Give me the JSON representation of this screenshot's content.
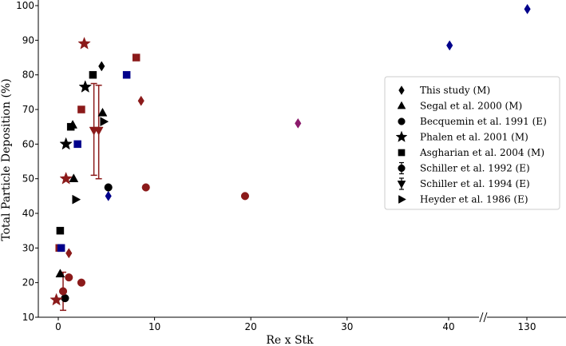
{
  "chart_data": {
    "type": "scatter",
    "title": "",
    "xlabel": "Re x Stk",
    "ylabel": "Total Particle Deposition (%)",
    "ylim": [
      10,
      100
    ],
    "yticks": [
      "10",
      "20",
      "30",
      "40",
      "50",
      "60",
      "70",
      "80",
      "90",
      "100"
    ],
    "x_segments": [
      {
        "range": [
          -1,
          30
        ],
        "ticks": [
          [
            "0",
            0
          ],
          [
            "10",
            10
          ],
          [
            "20",
            20
          ],
          [
            "30",
            30
          ]
        ]
      },
      {
        "range": [
          39,
          43
        ],
        "ticks": [
          [
            "40",
            40
          ]
        ]
      },
      {
        "range": [
          128,
          132
        ],
        "ticks": [
          [
            "130",
            130
          ]
        ]
      }
    ],
    "axis_break": "between 30 and 40",
    "grid": false,
    "legend_position": "center-right",
    "colors": {
      "black": "#000000",
      "dark_red": "#8b1a1a",
      "navy": "#00008b",
      "purple": "#8b1a6b"
    },
    "series": [
      {
        "name": "This study",
        "tag": "(M)",
        "marker": "diamond",
        "points": [
          {
            "x": 4.5,
            "y": 82.5,
            "color": "black"
          },
          {
            "x": 8.6,
            "y": 72.5,
            "color": "dark_red"
          },
          {
            "x": 1.1,
            "y": 28.5,
            "color": "dark_red"
          },
          {
            "x": 5.2,
            "y": 45,
            "color": "navy"
          },
          {
            "x": 24.9,
            "y": 66,
            "color": "purple"
          },
          {
            "x": 40.3,
            "y": 88.5,
            "color": "navy"
          },
          {
            "x": 130.2,
            "y": 99,
            "color": "navy"
          }
        ]
      },
      {
        "name": "Segal et al. 2000",
        "tag": "(M)",
        "marker": "triangle",
        "points": [
          {
            "x": 4.6,
            "y": 69,
            "color": "black"
          },
          {
            "x": 1.6,
            "y": 50,
            "color": "black"
          },
          {
            "x": 1.5,
            "y": 65.5,
            "color": "black"
          },
          {
            "x": 0.2,
            "y": 22.5,
            "color": "black"
          }
        ]
      },
      {
        "name": "Becquemin et al. 1991",
        "tag": "(E)",
        "marker": "circle",
        "points": [
          {
            "x": 5.2,
            "y": 47.5,
            "color": "black"
          },
          {
            "x": 9.1,
            "y": 47.5,
            "color": "dark_red"
          },
          {
            "x": 19.4,
            "y": 45,
            "color": "dark_red"
          },
          {
            "x": 1.1,
            "y": 21.5,
            "color": "dark_red"
          },
          {
            "x": 2.4,
            "y": 20,
            "color": "dark_red"
          },
          {
            "x": 0.7,
            "y": 15.5,
            "color": "black"
          }
        ]
      },
      {
        "name": "Phalen et al. 2001",
        "tag": "(M)",
        "marker": "star",
        "points": [
          {
            "x": 2.7,
            "y": 89,
            "color": "dark_red"
          },
          {
            "x": 2.8,
            "y": 76.5,
            "color": "black"
          },
          {
            "x": 0.8,
            "y": 60,
            "color": "black"
          },
          {
            "x": 0.8,
            "y": 50,
            "color": "dark_red"
          },
          {
            "x": -0.2,
            "y": 15,
            "color": "dark_red"
          }
        ]
      },
      {
        "name": "Asgharian et al. 2004",
        "tag": "(M)",
        "marker": "square",
        "points": [
          {
            "x": 8.1,
            "y": 85,
            "color": "dark_red"
          },
          {
            "x": 3.6,
            "y": 80,
            "color": "black"
          },
          {
            "x": 7.1,
            "y": 80,
            "color": "navy"
          },
          {
            "x": 2.4,
            "y": 70,
            "color": "dark_red"
          },
          {
            "x": 1.3,
            "y": 65,
            "color": "black"
          },
          {
            "x": 2.0,
            "y": 60,
            "color": "navy"
          },
          {
            "x": 0.2,
            "y": 35,
            "color": "black"
          },
          {
            "x": 0.1,
            "y": 30,
            "color": "dark_red"
          },
          {
            "x": 0.3,
            "y": 30,
            "color": "navy"
          }
        ]
      },
      {
        "name": "Schiller et al. 1992",
        "tag": "(E)",
        "marker": "circle-errorbar",
        "points": [
          {
            "x": 0.5,
            "y": 17.5,
            "color": "dark_red",
            "y_low": 12,
            "y_high": 23
          }
        ]
      },
      {
        "name": "Schiller et al. 1994",
        "tag": "(E)",
        "marker": "triangle-down-errorbar",
        "points": [
          {
            "x": 3.7,
            "y": 64,
            "color": "dark_red",
            "y_low": 51,
            "y_high": 77.5
          },
          {
            "x": 4.2,
            "y": 64,
            "color": "dark_red",
            "y_low": 50,
            "y_high": 77
          }
        ]
      },
      {
        "name": "Heyder et al. 1986",
        "tag": "(E)",
        "marker": "triangle-right",
        "points": [
          {
            "x": 4.7,
            "y": 66.5,
            "color": "black"
          },
          {
            "x": 1.8,
            "y": 44,
            "color": "black"
          }
        ]
      }
    ]
  }
}
